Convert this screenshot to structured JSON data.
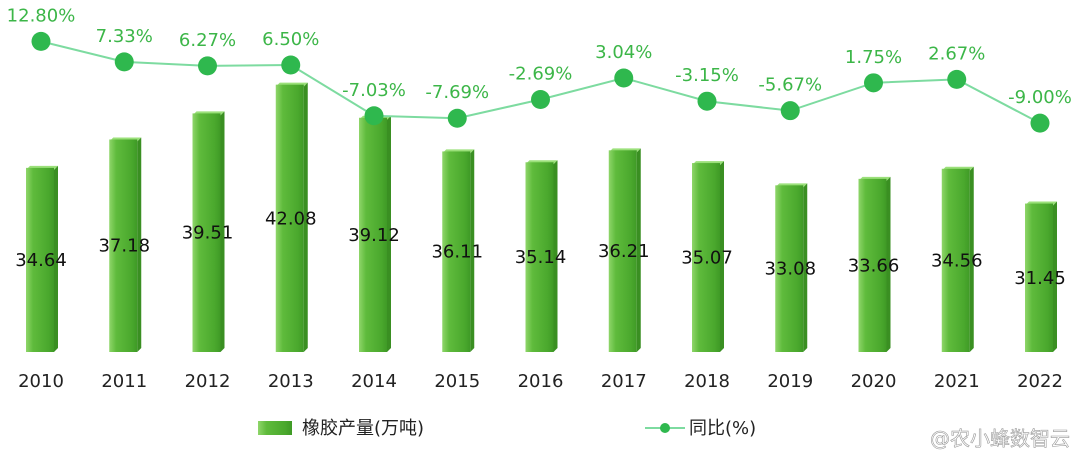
{
  "chart_data": {
    "type": "bar_line",
    "categories": [
      "2010",
      "2011",
      "2012",
      "2013",
      "2014",
      "2015",
      "2016",
      "2017",
      "2018",
      "2019",
      "2020",
      "2021",
      "2022"
    ],
    "series": [
      {
        "name": "橡胶产量(万吨)",
        "type": "bar",
        "color": "#5cb83a",
        "values": [
          34.64,
          37.18,
          39.51,
          42.08,
          39.12,
          36.11,
          35.14,
          36.21,
          35.07,
          33.08,
          33.66,
          34.56,
          31.45
        ]
      },
      {
        "name": "同比(%)",
        "type": "line",
        "axis": "y2",
        "color": "#7ddba0",
        "marker_color": "#2fb84e",
        "values": [
          12.8,
          7.33,
          6.27,
          6.5,
          -7.03,
          -7.69,
          -2.69,
          3.04,
          -3.15,
          -5.67,
          1.75,
          2.67,
          -9
        ],
        "value_labels": [
          "12.80%",
          "7.33%",
          "6.27%",
          "6.50%",
          "-7.03%",
          "-7.69%",
          "-2.69%",
          "3.04%",
          "-3.15%",
          "-5.67%",
          "1.75%",
          "2.67%",
          "-9.00%"
        ]
      }
    ],
    "ylim": [
      18,
      45
    ],
    "y2lim": [
      -70,
      10.5
    ],
    "grid": false,
    "legend": "bottom",
    "watermark": "@农小蜂数智云"
  }
}
